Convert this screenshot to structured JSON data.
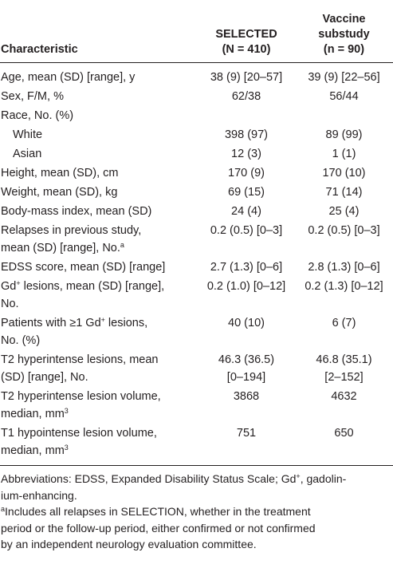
{
  "table": {
    "header": [
      [
        "Characteristic"
      ],
      [
        "SELECTED",
        "(N = 410)"
      ],
      [
        "Vaccine",
        "substudy",
        "(n = 90)"
      ]
    ],
    "rows": [
      {
        "cells": [
          [
            "Age, mean (SD) [range], y"
          ],
          [
            "38 (9) [20–57]"
          ],
          [
            "39 (9) [22–56]"
          ]
        ]
      },
      {
        "cells": [
          [
            "Sex, F/M, %"
          ],
          [
            "62/38"
          ],
          [
            "56/44"
          ]
        ]
      },
      {
        "cells": [
          [
            "Race, No. (%)"
          ],
          [],
          []
        ]
      },
      {
        "cells": [
          [
            "White"
          ],
          [
            "398 (97)"
          ],
          [
            "89 (99)"
          ]
        ],
        "indent": true
      },
      {
        "cells": [
          [
            "Asian"
          ],
          [
            "12 (3)"
          ],
          [
            "1 (1)"
          ]
        ],
        "indent": true
      },
      {
        "cells": [
          [
            "Height, mean (SD), cm"
          ],
          [
            "170 (9)"
          ],
          [
            "170 (10)"
          ]
        ]
      },
      {
        "cells": [
          [
            "Weight, mean (SD), kg"
          ],
          [
            "69 (15)"
          ],
          [
            "71 (14)"
          ]
        ]
      },
      {
        "cells": [
          [
            "Body-mass index, mean (SD)"
          ],
          [
            "24 (4)"
          ],
          [
            "25 (4)"
          ]
        ]
      },
      {
        "cells": [
          [
            "Relapses in previous study,",
            [
              "mean (SD) [range], No.",
              {
                "sup": "a"
              }
            ]
          ],
          [
            "0.2 (0.5) [0–3]"
          ],
          [
            "0.2 (0.5) [0–3]"
          ]
        ]
      },
      {
        "cells": [
          [
            "EDSS score, mean (SD) [range]"
          ],
          [
            "2.7 (1.3) [0–6]"
          ],
          [
            "2.8 (1.3) [0–6]"
          ]
        ]
      },
      {
        "cells": [
          [
            [
              "Gd",
              {
                "sup": "+"
              },
              " lesions, mean (SD) [range],"
            ],
            "No."
          ],
          [
            "0.2 (1.0) [0–12]"
          ],
          [
            "0.2 (1.3) [0–12]"
          ]
        ]
      },
      {
        "cells": [
          [
            [
              "Patients with ≥1 Gd",
              {
                "sup": "+"
              },
              " lesions,"
            ],
            "No. (%)"
          ],
          [
            "40 (10)"
          ],
          [
            "6 (7)"
          ]
        ]
      },
      {
        "cells": [
          [
            "T2 hyperintense lesions, mean",
            "(SD) [range], No."
          ],
          [
            "46.3 (36.5)",
            "[0–194]"
          ],
          [
            "46.8 (35.1)",
            "[2–152]"
          ]
        ]
      },
      {
        "cells": [
          [
            "T2 hyperintense lesion volume,",
            [
              "median, mm",
              {
                "sup": "3"
              }
            ]
          ],
          [
            "3868"
          ],
          [
            "4632"
          ]
        ]
      },
      {
        "cells": [
          [
            "T1 hypointense lesion volume,",
            [
              "median, mm",
              {
                "sup": "3"
              }
            ]
          ],
          [
            "751"
          ],
          [
            "650"
          ]
        ]
      }
    ]
  },
  "footnotes": [
    [
      [
        "Abbreviations: EDSS, Expanded Disability Status Scale; Gd",
        {
          "sup": "+"
        },
        ", gadolin-"
      ],
      "ium-enhancing."
    ],
    [
      [
        {
          "sup": "a"
        },
        "Includes all relapses in SELECTION, whether in the treatment"
      ],
      "period or the follow-up period, either confirmed or not confirmed",
      "by an independent neurology evaluation committee."
    ]
  ]
}
